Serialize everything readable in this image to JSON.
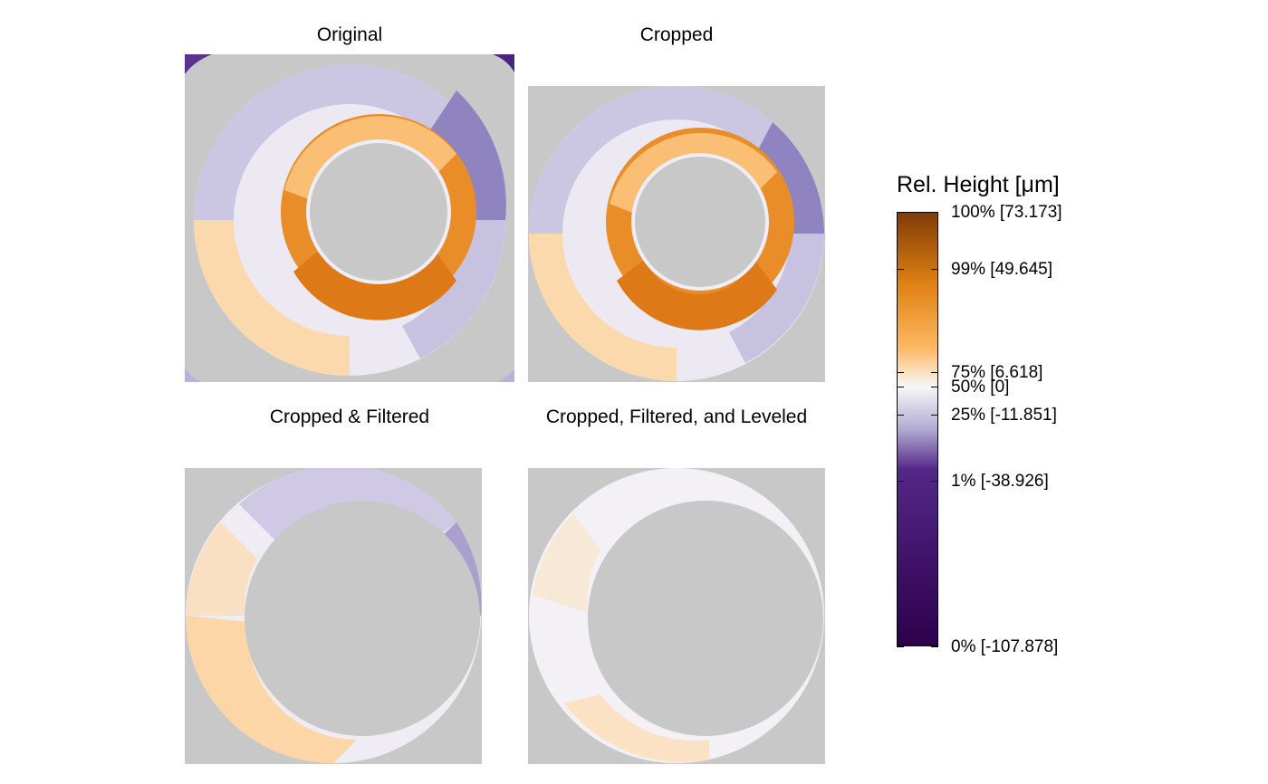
{
  "chart_data": {
    "type": "heatmap",
    "panels": [
      {
        "title": "Original",
        "stage": "original"
      },
      {
        "title": "Cropped",
        "stage": "cropped"
      },
      {
        "title": "Cropped & Filtered",
        "stage": "cropped_filtered"
      },
      {
        "title": "Cropped, Filtered, and Leveled",
        "stage": "cropped_filtered_leveled"
      }
    ],
    "legend": {
      "title": "Rel. Height [μm]",
      "colors": {
        "high": "#7f3b08",
        "mid_high": "#e08214",
        "mid_light": "#fdb863",
        "center": "#f7f7f7",
        "mid_low": "#b2abd2",
        "low_mid": "#542788",
        "low": "#2d004b"
      },
      "ticks": [
        {
          "percentile": 100,
          "value": 73.173,
          "label": "100% [73.173]"
        },
        {
          "percentile": 99,
          "value": 49.645,
          "label": "99% [49.645]"
        },
        {
          "percentile": 75,
          "value": 6.618,
          "label": "75% [6.618]"
        },
        {
          "percentile": 50,
          "value": 0,
          "label": "50% [0]"
        },
        {
          "percentile": 25,
          "value": -11.851,
          "label": "25% [-11.851]"
        },
        {
          "percentile": 1,
          "value": -38.926,
          "label": "1% [-38.926]"
        },
        {
          "percentile": 0,
          "value": -107.878,
          "label": "0% [-107.878]"
        }
      ],
      "range": [
        -107.878,
        73.173
      ]
    },
    "background_color": "#c8c8c8"
  }
}
